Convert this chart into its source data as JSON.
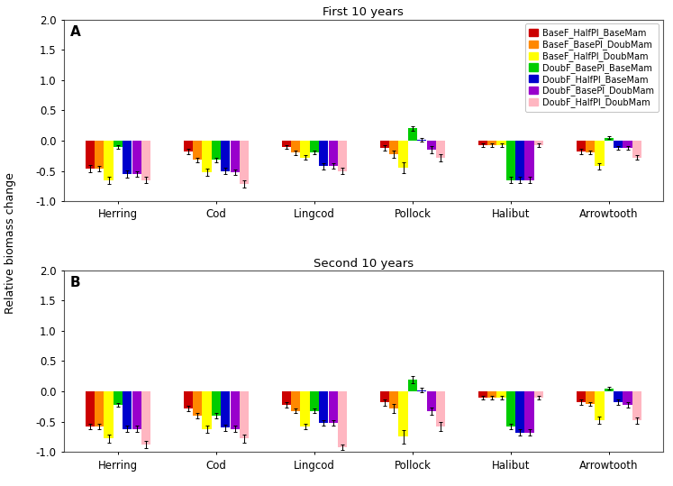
{
  "title_A": "First 10 years",
  "title_B": "Second 10 years",
  "label_A": "A",
  "label_B": "B",
  "ylabel": "Relative biomass change",
  "species": [
    "Herring",
    "Cod",
    "Lingcod",
    "Pollock",
    "Halibut",
    "Arrowtooth"
  ],
  "legend_labels": [
    "BaseF_HalfPl_BaseMam",
    "BaseF_BasePl_DoubMam",
    "BaseF_HalfPl_DoubMam",
    "DoubF_BasePl_BaseMam",
    "DoubF_HalfPl_BaseMam",
    "DoubF_BasePl_DoubMam",
    "DoubF_HalfPl_DoubMam"
  ],
  "colors": [
    "#cc0000",
    "#ff8800",
    "#ffff00",
    "#00cc00",
    "#0000cc",
    "#9900cc",
    "#ffb6c1"
  ],
  "data_A": {
    "values": [
      [
        -0.46,
        -0.46,
        -0.65,
        -0.1,
        -0.55,
        -0.55,
        -0.65
      ],
      [
        -0.18,
        -0.32,
        -0.52,
        -0.32,
        -0.5,
        -0.52,
        -0.72
      ],
      [
        -0.1,
        -0.2,
        -0.28,
        -0.2,
        -0.42,
        -0.42,
        -0.5
      ],
      [
        -0.12,
        -0.22,
        -0.45,
        0.2,
        0.02,
        -0.15,
        -0.28
      ],
      [
        -0.08,
        -0.08,
        -0.08,
        -0.65,
        -0.65,
        -0.65,
        -0.08
      ],
      [
        -0.18,
        -0.2,
        -0.42,
        0.05,
        -0.12,
        -0.12,
        -0.28
      ]
    ],
    "errors": [
      [
        0.06,
        0.04,
        0.06,
        0.03,
        0.06,
        0.05,
        0.05
      ],
      [
        0.04,
        0.04,
        0.06,
        0.04,
        0.05,
        0.05,
        0.06
      ],
      [
        0.03,
        0.04,
        0.04,
        0.03,
        0.05,
        0.04,
        0.05
      ],
      [
        0.05,
        0.06,
        0.09,
        0.03,
        0.03,
        0.06,
        0.06
      ],
      [
        0.03,
        0.03,
        0.03,
        0.05,
        0.05,
        0.05,
        0.03
      ],
      [
        0.04,
        0.03,
        0.05,
        0.02,
        0.03,
        0.03,
        0.04
      ]
    ]
  },
  "data_B": {
    "values": [
      [
        -0.58,
        -0.58,
        -0.78,
        -0.22,
        -0.62,
        -0.62,
        -0.88
      ],
      [
        -0.28,
        -0.4,
        -0.62,
        -0.4,
        -0.6,
        -0.62,
        -0.78
      ],
      [
        -0.22,
        -0.32,
        -0.58,
        -0.32,
        -0.52,
        -0.52,
        -0.92
      ],
      [
        -0.18,
        -0.28,
        -0.75,
        0.2,
        0.02,
        -0.32,
        -0.58
      ],
      [
        -0.1,
        -0.1,
        -0.1,
        -0.58,
        -0.68,
        -0.68,
        -0.1
      ],
      [
        -0.18,
        -0.2,
        -0.48,
        0.05,
        -0.18,
        -0.22,
        -0.48
      ]
    ],
    "errors": [
      [
        0.05,
        0.04,
        0.06,
        0.03,
        0.05,
        0.05,
        0.06
      ],
      [
        0.05,
        0.04,
        0.06,
        0.04,
        0.05,
        0.05,
        0.06
      ],
      [
        0.04,
        0.04,
        0.05,
        0.04,
        0.05,
        0.05,
        0.05
      ],
      [
        0.05,
        0.07,
        0.11,
        0.06,
        0.04,
        0.06,
        0.07
      ],
      [
        0.03,
        0.03,
        0.03,
        0.05,
        0.05,
        0.05,
        0.03
      ],
      [
        0.04,
        0.03,
        0.06,
        0.02,
        0.04,
        0.04,
        0.05
      ]
    ]
  },
  "ylim": [
    -1.0,
    2.0
  ],
  "yticks": [
    -1.0,
    -0.5,
    0.0,
    0.5,
    1.0,
    1.5,
    2.0
  ]
}
